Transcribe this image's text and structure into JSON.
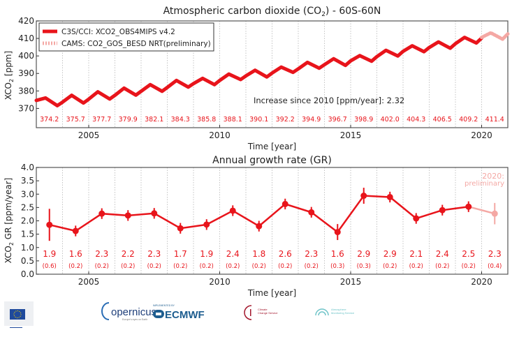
{
  "chart_data": [
    {
      "type": "line",
      "title": "Atmospheric carbon dioxide (CO",
      "title_sub": "2",
      "title_suffix": ") - 60S-60N",
      "xlabel": "Time [year]",
      "ylabel": "XCO",
      "ylabel_sub": "2",
      "ylabel_suffix": " [ppm]",
      "xlim": [
        2003,
        2021
      ],
      "ylim": [
        359,
        420
      ],
      "xticks": [
        2005,
        2010,
        2015,
        2020
      ],
      "yticks": [
        370,
        380,
        390,
        400,
        410,
        420
      ],
      "grid": "vertical dotted, yearly",
      "legend_position": "top-left",
      "annotation": "Increase since 2010 [ppm/year]: 2.32",
      "annual_mean_labels": {
        "years": [
          2003,
          2004,
          2005,
          2006,
          2007,
          2008,
          2009,
          2010,
          2011,
          2012,
          2013,
          2014,
          2015,
          2016,
          2017,
          2018,
          2019,
          2020
        ],
        "values": [
          "374.2",
          "375.7",
          "377.7",
          "379.9",
          "382.1",
          "384.3",
          "385.8",
          "388.1",
          "390.1",
          "392.2",
          "394.9",
          "396.7",
          "398.9",
          "402.0",
          "404.3",
          "406.5",
          "409.2",
          "411.4"
        ]
      },
      "series": [
        {
          "name": "C3S/CCI: XCO2_OBS4MIPS v4.2",
          "color": "#e8141b",
          "points": [
            [
              2003.0,
              374.6
            ],
            [
              2003.35,
              376.0
            ],
            [
              2003.8,
              371.6
            ],
            [
              2004.0,
              373.6
            ],
            [
              2004.35,
              377.5
            ],
            [
              2004.8,
              373.1
            ],
            [
              2005.0,
              375.3
            ],
            [
              2005.35,
              379.5
            ],
            [
              2005.8,
              375.4
            ],
            [
              2006.0,
              377.5
            ],
            [
              2006.35,
              381.6
            ],
            [
              2006.8,
              377.6
            ],
            [
              2007.0,
              379.8
            ],
            [
              2007.35,
              383.6
            ],
            [
              2007.8,
              379.8
            ],
            [
              2008.0,
              382.0
            ],
            [
              2008.35,
              386.0
            ],
            [
              2008.8,
              382.2
            ],
            [
              2009.0,
              384.2
            ],
            [
              2009.35,
              387.2
            ],
            [
              2009.8,
              383.6
            ],
            [
              2010.0,
              386.0
            ],
            [
              2010.35,
              389.6
            ],
            [
              2010.8,
              386.5
            ],
            [
              2011.0,
              388.6
            ],
            [
              2011.35,
              391.8
            ],
            [
              2011.8,
              388.0
            ],
            [
              2012.0,
              390.2
            ],
            [
              2012.35,
              393.6
            ],
            [
              2012.8,
              390.6
            ],
            [
              2013.0,
              392.6
            ],
            [
              2013.35,
              396.3
            ],
            [
              2013.8,
              393.0
            ],
            [
              2014.0,
              395.0
            ],
            [
              2014.35,
              398.4
            ],
            [
              2014.8,
              394.6
            ],
            [
              2015.0,
              397.2
            ],
            [
              2015.35,
              400.2
            ],
            [
              2015.8,
              397.0
            ],
            [
              2016.0,
              399.6
            ],
            [
              2016.35,
              403.2
            ],
            [
              2016.8,
              400.0
            ],
            [
              2017.0,
              402.6
            ],
            [
              2017.35,
              405.8
            ],
            [
              2017.8,
              402.4
            ],
            [
              2018.0,
              404.8
            ],
            [
              2018.35,
              408.0
            ],
            [
              2018.8,
              404.4
            ],
            [
              2019.0,
              407.0
            ],
            [
              2019.35,
              410.6
            ],
            [
              2019.8,
              407.4
            ],
            [
              2020.0,
              410.2
            ]
          ]
        },
        {
          "name": "CAMS: CO2_GOS_BESD NRT(preliminary)",
          "color": "#f4a8a4",
          "points": [
            [
              2020.0,
              410.6
            ],
            [
              2020.35,
              413.2
            ],
            [
              2020.8,
              409.6
            ],
            [
              2021.0,
              412.6
            ]
          ]
        }
      ]
    },
    {
      "type": "line",
      "title": "Annual growth rate (GR)",
      "xlabel": "Time [year]",
      "ylabel": "XCO",
      "ylabel_sub": "2",
      "ylabel_suffix": " GR [ppm/year]",
      "xlim": [
        2003,
        2021
      ],
      "ylim": [
        0.0,
        4.0
      ],
      "xticks": [
        2005,
        2010,
        2015,
        2020
      ],
      "yticks": [
        "0.0",
        "0.5",
        "1.0",
        "1.5",
        "2.0",
        "2.5",
        "3.0",
        "3.5",
        "4.0"
      ],
      "grid": "vertical dotted, yearly",
      "annotation": [
        "2020:",
        "preliminary"
      ],
      "color": "#e8141b",
      "preliminary_color": "#f4a8a4",
      "years": [
        2003,
        2004,
        2005,
        2006,
        2007,
        2008,
        2009,
        2010,
        2011,
        2012,
        2013,
        2014,
        2015,
        2016,
        2017,
        2018,
        2019,
        2020
      ],
      "values": [
        1.85,
        1.62,
        2.27,
        2.2,
        2.28,
        1.72,
        1.86,
        2.38,
        1.8,
        2.63,
        2.32,
        1.58,
        2.94,
        2.89,
        2.09,
        2.4,
        2.53,
        2.27
      ],
      "errors": [
        0.6,
        0.2,
        0.2,
        0.2,
        0.2,
        0.2,
        0.2,
        0.2,
        0.2,
        0.2,
        0.2,
        0.3,
        0.3,
        0.2,
        0.2,
        0.2,
        0.2,
        0.4
      ],
      "value_labels": [
        "1.9",
        "1.6",
        "2.3",
        "2.2",
        "2.3",
        "1.7",
        "1.9",
        "2.4",
        "1.8",
        "2.6",
        "2.3",
        "1.6",
        "2.9",
        "2.9",
        "2.1",
        "2.4",
        "2.5",
        "2.3"
      ],
      "error_labels": [
        "(0.6)",
        "(0.2)",
        "(0.2)",
        "(0.2)",
        "(0.2)",
        "(0.2)",
        "(0.2)",
        "(0.2)",
        "(0.2)",
        "(0.2)",
        "(0.2)",
        "(0.3)",
        "(0.3)",
        "(0.2)",
        "(0.2)",
        "(0.2)",
        "(0.2)",
        "(0.4)"
      ]
    }
  ],
  "logos": {
    "eu": "European Commission",
    "copernicus": "opernicus",
    "copernicus_sub": "Europe's eyes on Earth",
    "ecmwf_top": "IMPLEMENTED BY",
    "ecmwf": "ECMWF",
    "c3s": [
      "Climate",
      "Change Service"
    ],
    "cams": [
      "Atmosphere",
      "Monitoring Service"
    ]
  }
}
